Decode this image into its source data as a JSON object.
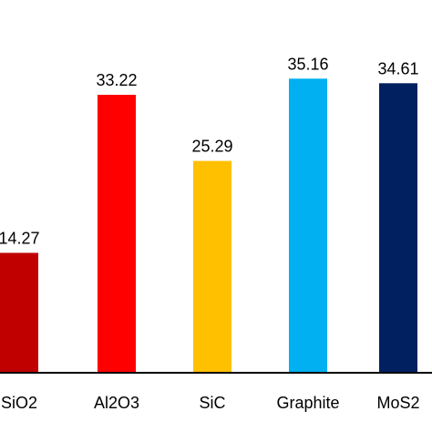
{
  "chart_data": {
    "type": "bar",
    "categories": [
      "SiO2",
      "Al2O3",
      "SiC",
      "Graphite",
      "MoS2"
    ],
    "values": [
      14.27,
      33.22,
      25.29,
      35.16,
      34.61
    ],
    "value_labels": [
      "14.27",
      "33.22",
      "25.29",
      "35.16",
      "34.61"
    ],
    "colors": [
      "#c00000",
      "#ff0000",
      "#ffc000",
      "#00b0f0",
      "#002060"
    ],
    "title": "",
    "xlabel": "",
    "ylabel": "",
    "ylim": [
      0,
      40
    ],
    "grid": false,
    "legend": "none"
  }
}
